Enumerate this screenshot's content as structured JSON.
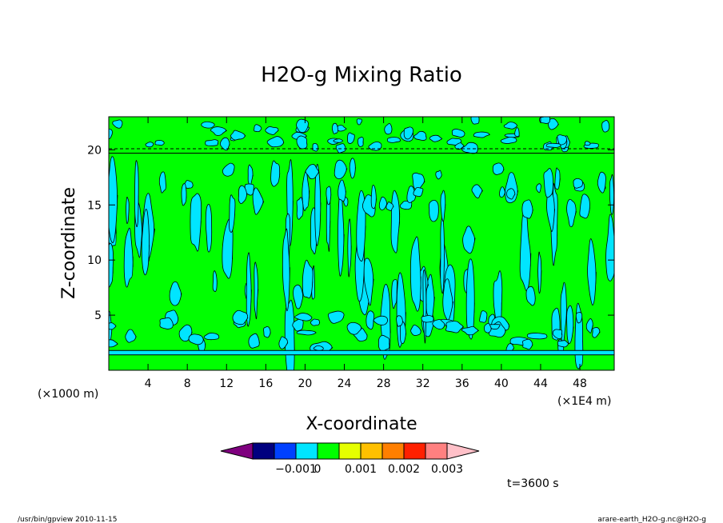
{
  "chart_data": {
    "type": "heatmap",
    "title": "H2O-g Mixing Ratio",
    "xlabel": "X-coordinate",
    "ylabel": "Z-coordinate",
    "x_unit_label": "(×1000 m)",
    "x_scale_label": "(×1E4 m)",
    "xlim": [
      0,
      51.5
    ],
    "ylim": [
      0,
      23
    ],
    "x_ticks": [
      4,
      8,
      12,
      16,
      20,
      24,
      28,
      32,
      36,
      40,
      44,
      48
    ],
    "y_ticks": [
      5,
      10,
      15,
      20
    ],
    "color_levels": [
      -0.001,
      0,
      0.001,
      0.002,
      0.003
    ],
    "colorbar_labels": [
      "−0.001",
      "0",
      "0.001",
      "0.002",
      "0.003"
    ],
    "colorbar_colors": [
      "#7f007f",
      "#00007f",
      "#0040ff",
      "#00e5ff",
      "#00ff00",
      "#e5ff00",
      "#ffc000",
      "#ff7f00",
      "#ff2000",
      "#ff8080",
      "#ffc0c8"
    ],
    "field_colors": {
      "low": "#00e5ff",
      "mid": "#00ff00"
    },
    "grid": false,
    "time_label": "t=3600 s"
  },
  "footer": {
    "left": "/usr/bin/gpview   2010-11-15",
    "right": "arare-earth_H2O-g.nc@H2O-g"
  }
}
